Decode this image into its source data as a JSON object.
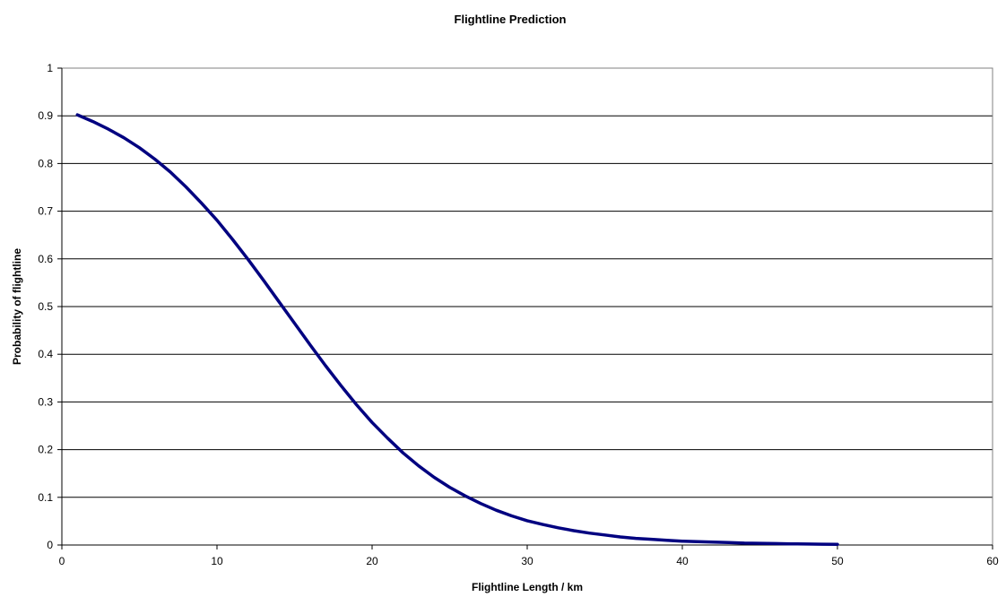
{
  "chart_data": {
    "type": "line",
    "title": "Flightline Prediction",
    "xlabel": "Flightline Length / km",
    "ylabel": "Probability of flightline",
    "xlim": [
      0,
      60
    ],
    "ylim": [
      0,
      1
    ],
    "x_ticks": [
      "0",
      "10",
      "20",
      "30",
      "40",
      "50",
      "60"
    ],
    "y_ticks": [
      "0",
      "0.1",
      "0.2",
      "0.3",
      "0.4",
      "0.5",
      "0.6",
      "0.7",
      "0.8",
      "0.9",
      "1"
    ],
    "grid": "horizontal",
    "legend": "none",
    "series": [
      {
        "color": "#000080",
        "x": [
          1,
          2,
          3,
          4,
          5,
          6,
          7,
          8,
          9,
          10,
          11,
          12,
          13,
          14,
          15,
          16,
          17,
          18,
          19,
          20,
          21,
          22,
          23,
          24,
          25,
          26,
          27,
          28,
          29,
          30,
          31,
          32,
          33,
          34,
          35,
          36,
          37,
          38,
          39,
          40,
          41,
          42,
          43,
          44,
          45,
          46,
          47,
          48,
          49,
          50
        ],
        "y": [
          0.902,
          0.888,
          0.872,
          0.854,
          0.833,
          0.809,
          0.782,
          0.751,
          0.717,
          0.681,
          0.641,
          0.599,
          0.555,
          0.51,
          0.465,
          0.42,
          0.376,
          0.334,
          0.294,
          0.257,
          0.224,
          0.193,
          0.166,
          0.142,
          0.121,
          0.103,
          0.087,
          0.073,
          0.061,
          0.051,
          0.043,
          0.036,
          0.03,
          0.025,
          0.021,
          0.017,
          0.014,
          0.012,
          0.01,
          0.008,
          0.007,
          0.006,
          0.005,
          0.004,
          0.0035,
          0.003,
          0.0025,
          0.002,
          0.0017,
          0.0015
        ]
      }
    ]
  }
}
